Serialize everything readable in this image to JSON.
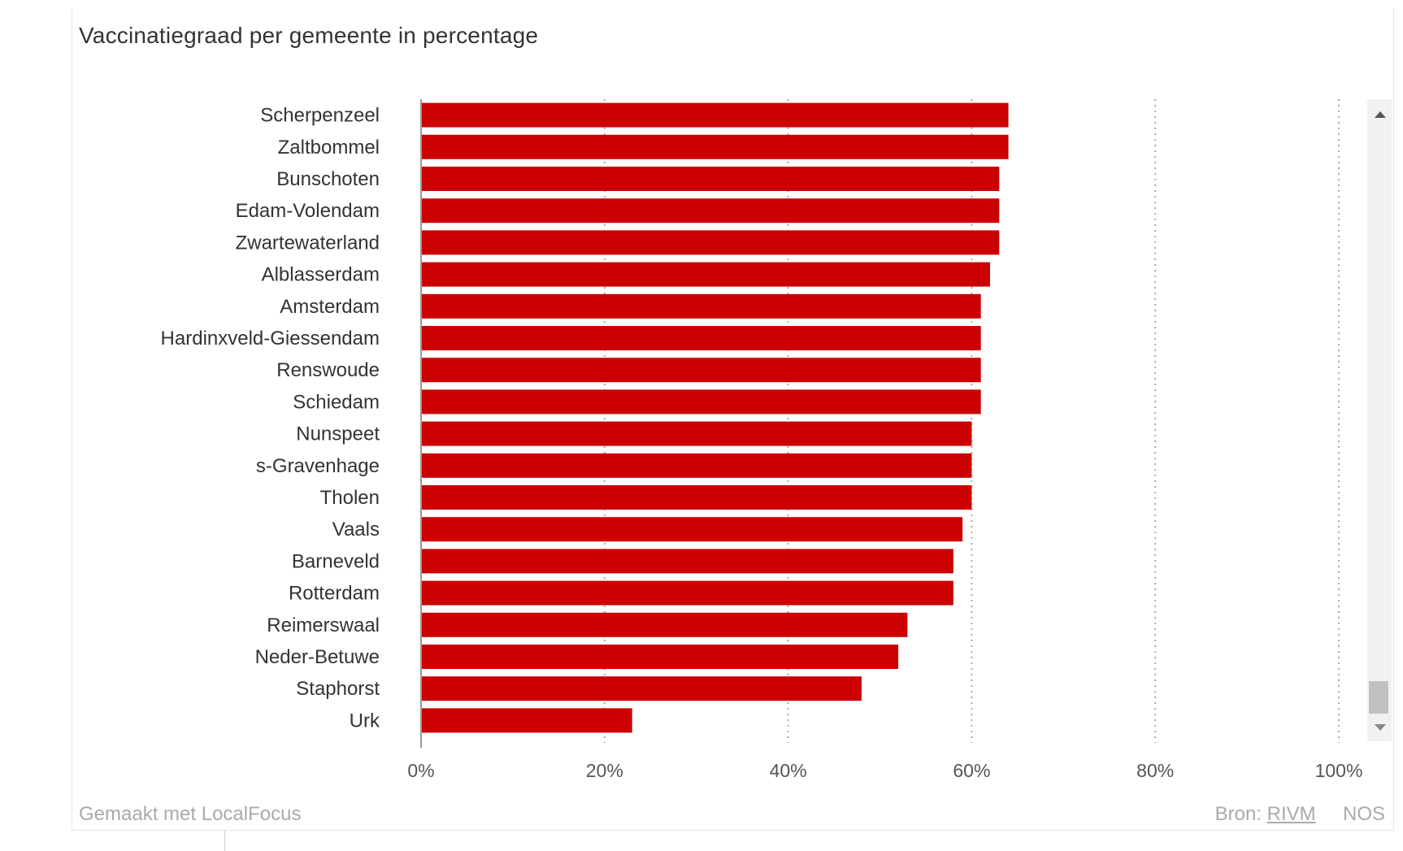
{
  "chart_data": {
    "type": "bar",
    "orientation": "horizontal",
    "title": "Vaccinatiegraad per gemeente in percentage",
    "categories": [
      "Scherpenzeel",
      "Zaltbommel",
      "Bunschoten",
      "Edam-Volendam",
      "Zwartewaterland",
      "Alblasserdam",
      "Amsterdam",
      "Hardinxveld-Giessendam",
      "Renswoude",
      "Schiedam",
      "Nunspeet",
      "s-Gravenhage",
      "Tholen",
      "Vaals",
      "Barneveld",
      "Rotterdam",
      "Reimerswaal",
      "Neder-Betuwe",
      "Staphorst",
      "Urk"
    ],
    "values": [
      64,
      64,
      63,
      63,
      63,
      62,
      61,
      61,
      61,
      61,
      60,
      60,
      60,
      59,
      58,
      58,
      53,
      52,
      48,
      23
    ],
    "xlim": [
      0,
      100
    ],
    "xticks": [
      0,
      20,
      40,
      60,
      80,
      100
    ],
    "xtick_labels": [
      "0%",
      "20%",
      "40%",
      "60%",
      "80%",
      "100%"
    ],
    "grid": "vertical-dotted",
    "bar_color": "#cc0000",
    "legend": "none"
  },
  "footer": {
    "made_with": "Gemaakt met LocalFocus",
    "source_label": "Bron:",
    "source_link": "RIVM",
    "publisher": "NOS"
  },
  "colors": {
    "bar": "#cc0000",
    "grid": "#aaaaaa",
    "axis": "#999999",
    "footer_text": "#aaaaaa"
  }
}
